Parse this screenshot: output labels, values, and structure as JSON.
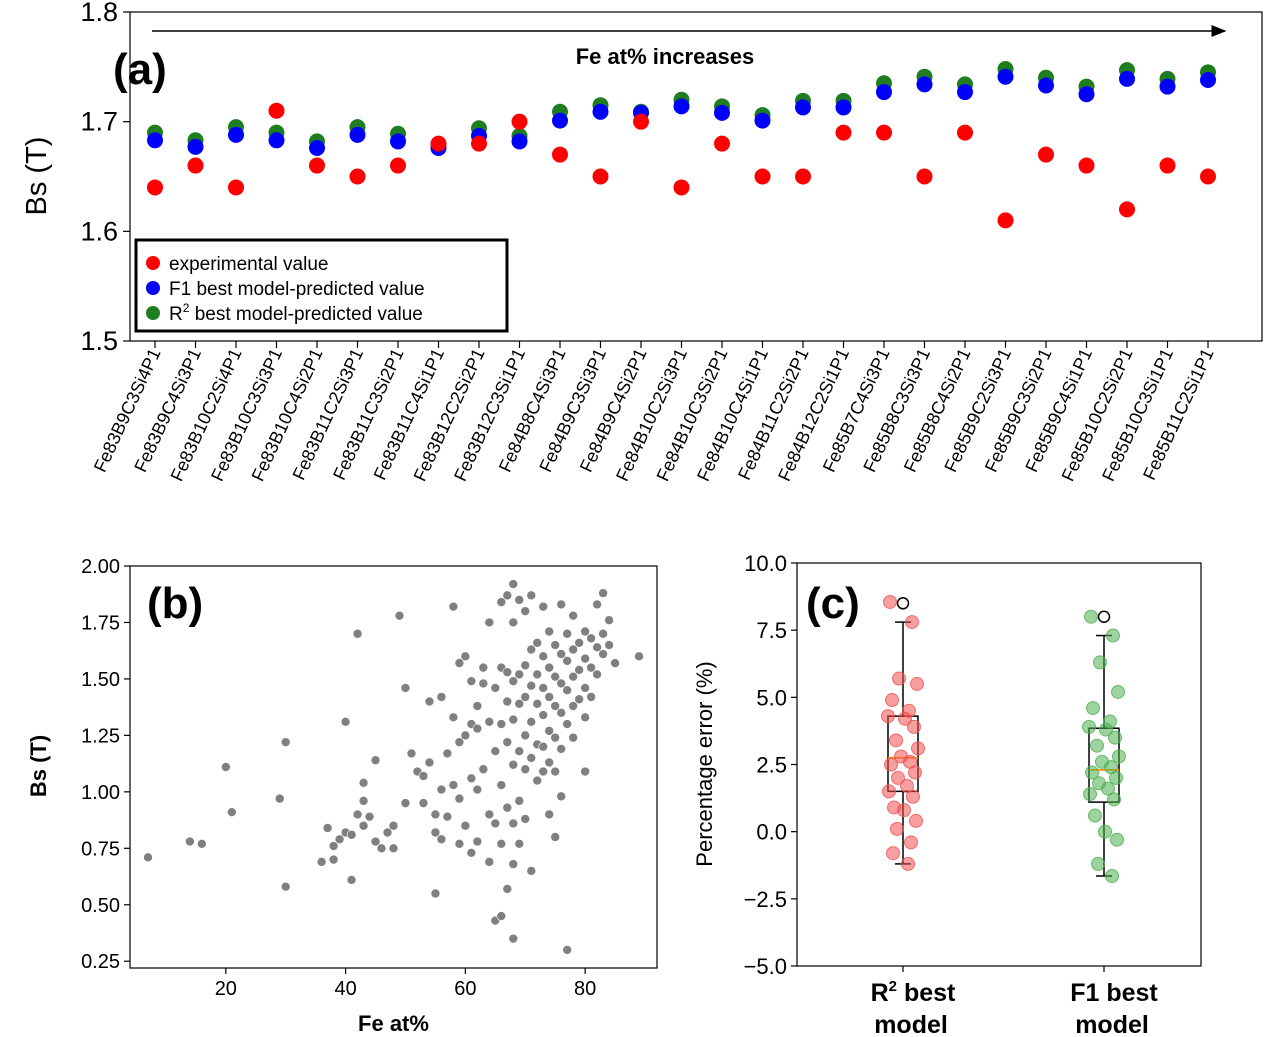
{
  "panels": {
    "a": {
      "label": "(a)"
    },
    "b": {
      "label": "(b)"
    },
    "c": {
      "label": "(c)"
    }
  },
  "chart_data": [
    {
      "id": "a",
      "type": "scatter",
      "title": "",
      "xlabel": "",
      "ylabel": "Bs (T)",
      "ylim": [
        1.5,
        1.8
      ],
      "yticks": [
        "1.5",
        "1.6",
        "1.7",
        "1.8"
      ],
      "annotation": "Fe at% increases",
      "legend_position": "lower-left",
      "categories": [
        "Fe83B9C3Si4P1",
        "Fe83B9C4Si3P1",
        "Fe83B10C2Si4P1",
        "Fe83B10C3Si3P1",
        "Fe83B10C4Si2P1",
        "Fe83B11C2Si3P1",
        "Fe83B11C3Si2P1",
        "Fe83B11C4Si1P1",
        "Fe83B12C2Si2P1",
        "Fe83B12C3Si1P1",
        "Fe84B8C4Si3P1",
        "Fe84B9C3Si3P1",
        "Fe84B9C4Si2P1",
        "Fe84B10C2Si3P1",
        "Fe84B10C3Si2P1",
        "Fe84B10C4Si1P1",
        "Fe84B11C2Si2P1",
        "Fe84B12C2Si1P1",
        "Fe85B7C4Si3P1",
        "Fe85B8C3Si3P1",
        "Fe85B8C4Si2P1",
        "Fe85B9C2Si3P1",
        "Fe85B9C3Si2P1",
        "Fe85B9C4Si1P1",
        "Fe85B10C2Si2P1",
        "Fe85B10C3Si1P1",
        "Fe85B11C2Si1P1"
      ],
      "series": [
        {
          "name": "experimental value",
          "color": "#ff0000",
          "values": [
            1.64,
            1.66,
            1.64,
            1.71,
            1.66,
            1.65,
            1.66,
            1.68,
            1.68,
            1.7,
            1.67,
            1.65,
            1.7,
            1.64,
            1.68,
            1.65,
            1.65,
            1.69,
            1.69,
            1.65,
            1.69,
            1.61,
            1.67,
            1.66,
            1.62,
            1.66,
            1.65
          ]
        },
        {
          "name": "F1 best model-predicted value",
          "color": "#0000ff",
          "values": [
            1.683,
            1.677,
            1.688,
            1.683,
            1.676,
            1.688,
            1.682,
            1.676,
            1.687,
            1.682,
            1.701,
            1.709,
            1.708,
            1.714,
            1.708,
            1.701,
            1.713,
            1.713,
            1.727,
            1.734,
            1.727,
            1.741,
            1.733,
            1.725,
            1.739,
            1.732,
            1.738
          ]
        },
        {
          "name": "R2 best model-predicted value",
          "color": "#1e7d1e",
          "values": [
            1.69,
            1.683,
            1.695,
            1.69,
            1.682,
            1.695,
            1.689,
            1.679,
            1.694,
            1.687,
            1.709,
            1.715,
            1.709,
            1.72,
            1.714,
            1.706,
            1.719,
            1.719,
            1.735,
            1.741,
            1.734,
            1.748,
            1.74,
            1.732,
            1.747,
            1.739,
            1.745
          ]
        }
      ],
      "legend": [
        {
          "name": "experimental value",
          "color": "#ff0000",
          "sup": ""
        },
        {
          "name": "F1 best model-predicted value",
          "color": "#0000ff",
          "sup": ""
        },
        {
          "name": " best model-predicted value",
          "prefix": "R",
          "color": "#1e7d1e",
          "sup": "2"
        }
      ]
    },
    {
      "id": "b",
      "type": "scatter",
      "title": "",
      "xlabel": "Fe at%",
      "ylabel": "Bs (T)",
      "xlim": [
        4,
        92
      ],
      "ylim": [
        0.22,
        2.0
      ],
      "xticks": [
        "20",
        "40",
        "60",
        "80"
      ],
      "yticks": [
        "0.25",
        "0.50",
        "0.75",
        "1.00",
        "1.25",
        "1.50",
        "1.75",
        "2.00"
      ],
      "color": "#808080",
      "points": [
        [
          7,
          0.71
        ],
        [
          14,
          0.78
        ],
        [
          16,
          0.77
        ],
        [
          20,
          1.11
        ],
        [
          21,
          0.91
        ],
        [
          29,
          0.97
        ],
        [
          30,
          1.22
        ],
        [
          30,
          0.58
        ],
        [
          36,
          0.69
        ],
        [
          37,
          0.84
        ],
        [
          38,
          0.76
        ],
        [
          38,
          0.7
        ],
        [
          39,
          0.79
        ],
        [
          40,
          0.82
        ],
        [
          40,
          1.31
        ],
        [
          41,
          0.81
        ],
        [
          41,
          0.61
        ],
        [
          42,
          1.7
        ],
        [
          42,
          0.9
        ],
        [
          43,
          0.96
        ],
        [
          43,
          1.04
        ],
        [
          43,
          0.85
        ],
        [
          44,
          0.89
        ],
        [
          45,
          0.78
        ],
        [
          45,
          1.14
        ],
        [
          46,
          0.75
        ],
        [
          47,
          0.82
        ],
        [
          48,
          0.85
        ],
        [
          48,
          0.75
        ],
        [
          49,
          1.78
        ],
        [
          50,
          1.46
        ],
        [
          50,
          0.95
        ],
        [
          51,
          1.17
        ],
        [
          52,
          1.09
        ],
        [
          53,
          1.07
        ],
        [
          53,
          0.95
        ],
        [
          54,
          1.4
        ],
        [
          54,
          1.13
        ],
        [
          55,
          0.9
        ],
        [
          55,
          0.82
        ],
        [
          55,
          0.55
        ],
        [
          56,
          1.42
        ],
        [
          56,
          1.01
        ],
        [
          56,
          0.79
        ],
        [
          57,
          1.17
        ],
        [
          57,
          0.89
        ],
        [
          58,
          1.82
        ],
        [
          58,
          1.33
        ],
        [
          58,
          1.03
        ],
        [
          59,
          1.57
        ],
        [
          59,
          1.22
        ],
        [
          59,
          0.97
        ],
        [
          59,
          0.77
        ],
        [
          60,
          1.6
        ],
        [
          60,
          1.25
        ],
        [
          60,
          0.85
        ],
        [
          61,
          1.49
        ],
        [
          61,
          1.3
        ],
        [
          61,
          1.06
        ],
        [
          61,
          0.73
        ],
        [
          62,
          1.38
        ],
        [
          62,
          1.28
        ],
        [
          62,
          1.01
        ],
        [
          62,
          0.78
        ],
        [
          63,
          1.55
        ],
        [
          63,
          1.48
        ],
        [
          63,
          1.1
        ],
        [
          64,
          1.75
        ],
        [
          64,
          1.31
        ],
        [
          64,
          0.9
        ],
        [
          64,
          0.69
        ],
        [
          65,
          1.46
        ],
        [
          65,
          1.18
        ],
        [
          65,
          0.86
        ],
        [
          65,
          0.43
        ],
        [
          66,
          1.84
        ],
        [
          66,
          1.55
        ],
        [
          66,
          1.3
        ],
        [
          66,
          1.03
        ],
        [
          66,
          0.77
        ],
        [
          66,
          0.45
        ],
        [
          67,
          1.87
        ],
        [
          67,
          1.53
        ],
        [
          67,
          1.4
        ],
        [
          67,
          1.22
        ],
        [
          67,
          0.93
        ],
        [
          67,
          0.57
        ],
        [
          68,
          1.92
        ],
        [
          68,
          1.75
        ],
        [
          68,
          1.49
        ],
        [
          68,
          1.32
        ],
        [
          68,
          1.12
        ],
        [
          68,
          0.86
        ],
        [
          68,
          0.68
        ],
        [
          68,
          0.35
        ],
        [
          69,
          1.85
        ],
        [
          69,
          1.52
        ],
        [
          69,
          1.39
        ],
        [
          69,
          1.18
        ],
        [
          69,
          0.96
        ],
        [
          69,
          0.77
        ],
        [
          70,
          1.8
        ],
        [
          70,
          1.56
        ],
        [
          70,
          1.42
        ],
        [
          70,
          1.25
        ],
        [
          70,
          1.1
        ],
        [
          70,
          0.88
        ],
        [
          71,
          1.87
        ],
        [
          71,
          1.63
        ],
        [
          71,
          1.47
        ],
        [
          71,
          1.31
        ],
        [
          71,
          1.15
        ],
        [
          71,
          0.65
        ],
        [
          72,
          1.66
        ],
        [
          72,
          1.52
        ],
        [
          72,
          1.39
        ],
        [
          72,
          1.21
        ],
        [
          72,
          1.05
        ],
        [
          73,
          1.82
        ],
        [
          73,
          1.6
        ],
        [
          73,
          1.46
        ],
        [
          73,
          1.34
        ],
        [
          73,
          1.2
        ],
        [
          73,
          1.09
        ],
        [
          74,
          1.71
        ],
        [
          74,
          1.55
        ],
        [
          74,
          1.42
        ],
        [
          74,
          1.27
        ],
        [
          74,
          1.13
        ],
        [
          74,
          0.9
        ],
        [
          75,
          1.65
        ],
        [
          75,
          1.51
        ],
        [
          75,
          1.38
        ],
        [
          75,
          1.24
        ],
        [
          75,
          1.09
        ],
        [
          75,
          0.8
        ],
        [
          76,
          1.83
        ],
        [
          76,
          1.61
        ],
        [
          76,
          1.48
        ],
        [
          76,
          1.35
        ],
        [
          76,
          1.19
        ],
        [
          76,
          0.98
        ],
        [
          77,
          1.7
        ],
        [
          77,
          1.58
        ],
        [
          77,
          1.45
        ],
        [
          77,
          1.3
        ],
        [
          77,
          0.3
        ],
        [
          78,
          1.78
        ],
        [
          78,
          1.63
        ],
        [
          78,
          1.51
        ],
        [
          78,
          1.38
        ],
        [
          78,
          1.24
        ],
        [
          79,
          1.66
        ],
        [
          79,
          1.54
        ],
        [
          79,
          1.41
        ],
        [
          80,
          1.71
        ],
        [
          80,
          1.59
        ],
        [
          80,
          1.46
        ],
        [
          80,
          1.33
        ],
        [
          80,
          1.09
        ],
        [
          81,
          1.68
        ],
        [
          81,
          1.55
        ],
        [
          81,
          1.42
        ],
        [
          82,
          1.83
        ],
        [
          82,
          1.64
        ],
        [
          82,
          1.52
        ],
        [
          83,
          1.88
        ],
        [
          83,
          1.7
        ],
        [
          83,
          1.61
        ],
        [
          84,
          1.76
        ],
        [
          84,
          1.65
        ],
        [
          85,
          1.57
        ],
        [
          89,
          1.6
        ]
      ]
    },
    {
      "id": "c",
      "type": "box",
      "title": "",
      "xlabel": "",
      "ylabel": "Percentage error (%)",
      "ylim": [
        -5.0,
        10.0
      ],
      "yticks": [
        "−5.0",
        "−2.5",
        "0.0",
        "2.5",
        "5.0",
        "7.5",
        "10.0"
      ],
      "categories": [
        {
          "line1_prefix": "R",
          "line1_sup": "2",
          "line1_rest": " best",
          "line2": "model"
        },
        {
          "line1_prefix": "F1 best",
          "line1_sup": "",
          "line1_rest": "",
          "line2": "model"
        }
      ],
      "boxes": [
        {
          "q1": 1.5,
          "median": 2.75,
          "q3": 4.3,
          "whisker_low": -1.2,
          "whisker_high": 7.8,
          "outliers": [
            8.5
          ],
          "point_color": "#f05050",
          "points": [
            8.55,
            7.8,
            5.7,
            5.5,
            4.9,
            4.5,
            4.3,
            4.2,
            3.9,
            3.4,
            3.1,
            2.8,
            2.6,
            2.5,
            2.2,
            2.0,
            1.7,
            1.5,
            1.3,
            0.9,
            0.8,
            0.4,
            0.1,
            -0.4,
            -0.8,
            -1.2
          ]
        },
        {
          "q1": 1.1,
          "median": 2.3,
          "q3": 3.85,
          "whisker_low": -1.65,
          "whisker_high": 7.3,
          "outliers": [
            8.0
          ],
          "point_color": "#4caf50",
          "points": [
            8.0,
            7.3,
            6.3,
            5.2,
            4.6,
            4.1,
            3.9,
            3.8,
            3.5,
            3.2,
            2.8,
            2.6,
            2.4,
            2.2,
            2.0,
            1.8,
            1.6,
            1.4,
            1.2,
            0.6,
            0.0,
            -0.3,
            -1.2,
            -1.65
          ]
        }
      ]
    }
  ]
}
